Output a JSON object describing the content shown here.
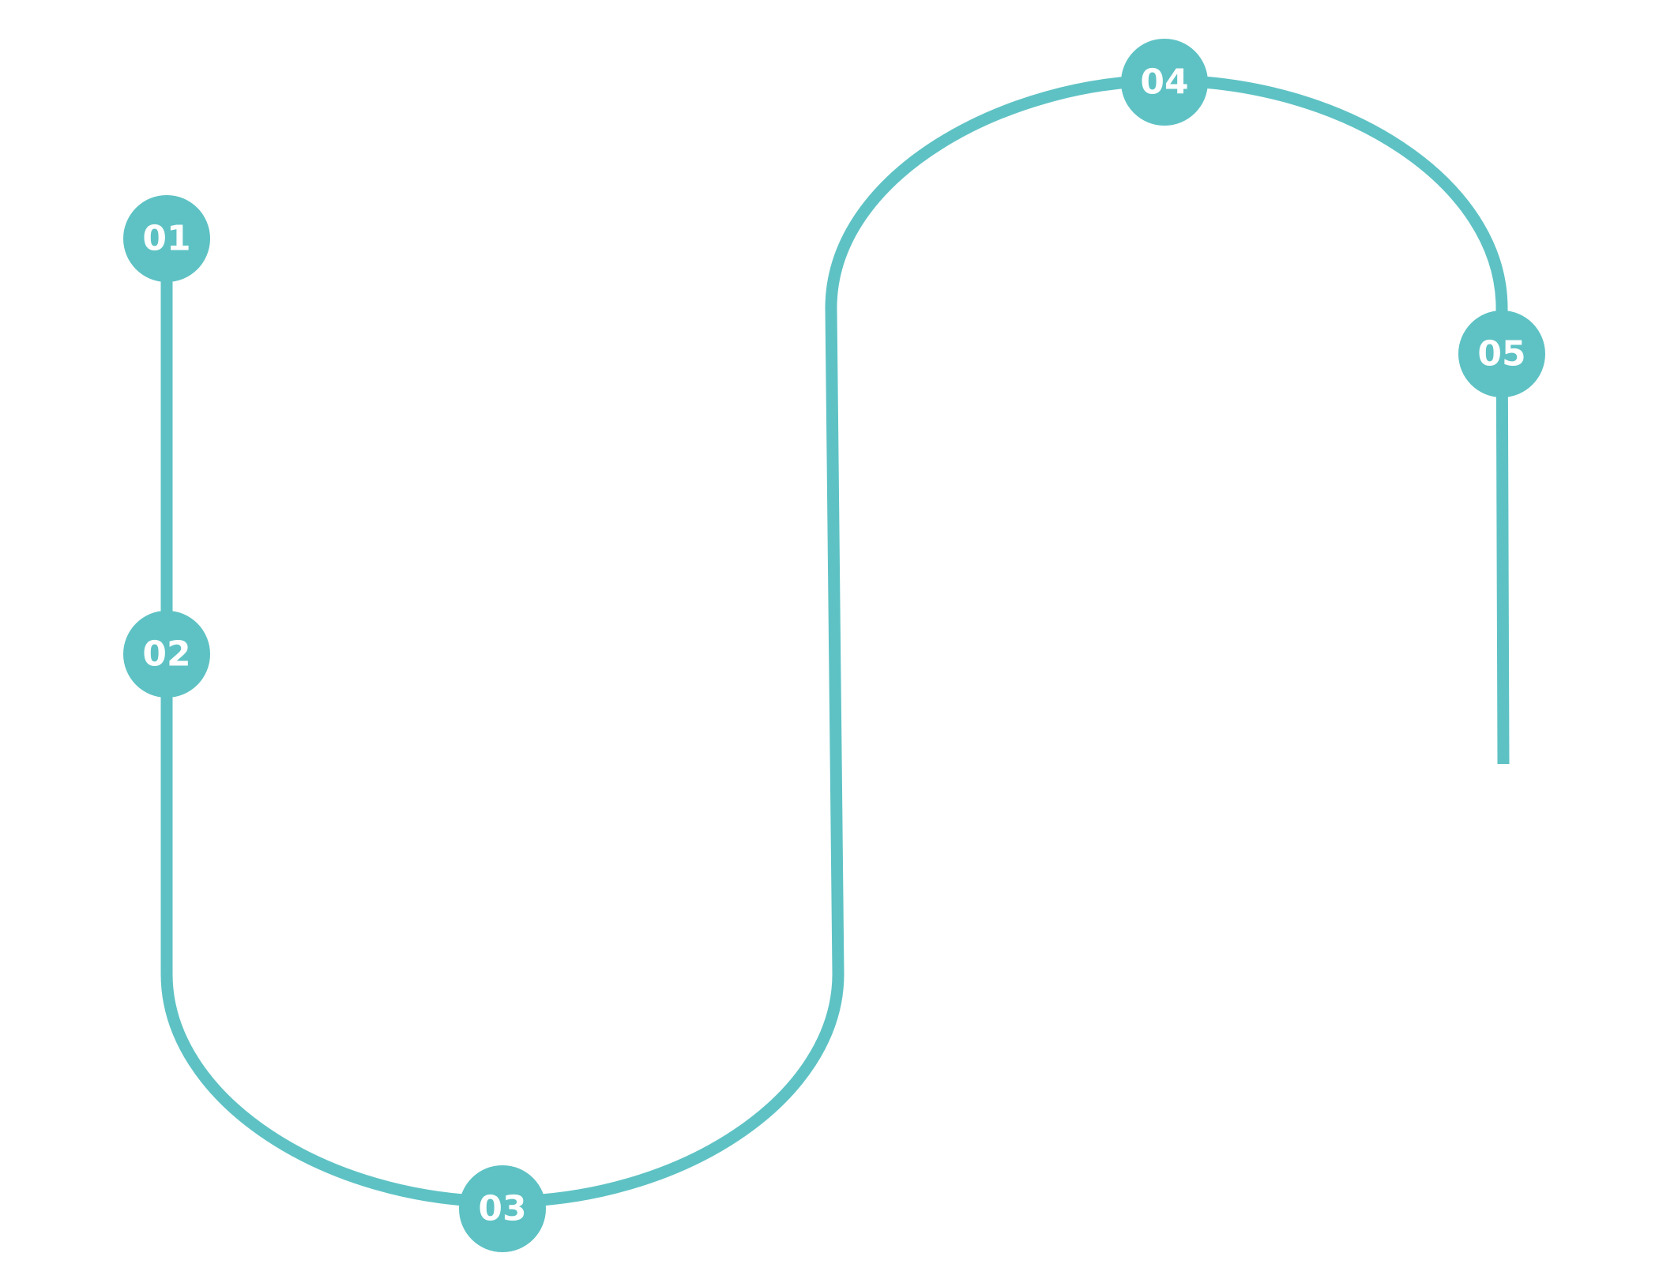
{
  "colors": {
    "accent": "#5EC2C4",
    "label": "#ffffff",
    "background": "#ffffff"
  },
  "steps": [
    {
      "label": "01"
    },
    {
      "label": "02"
    },
    {
      "label": "03"
    },
    {
      "label": "04"
    },
    {
      "label": "05"
    }
  ]
}
